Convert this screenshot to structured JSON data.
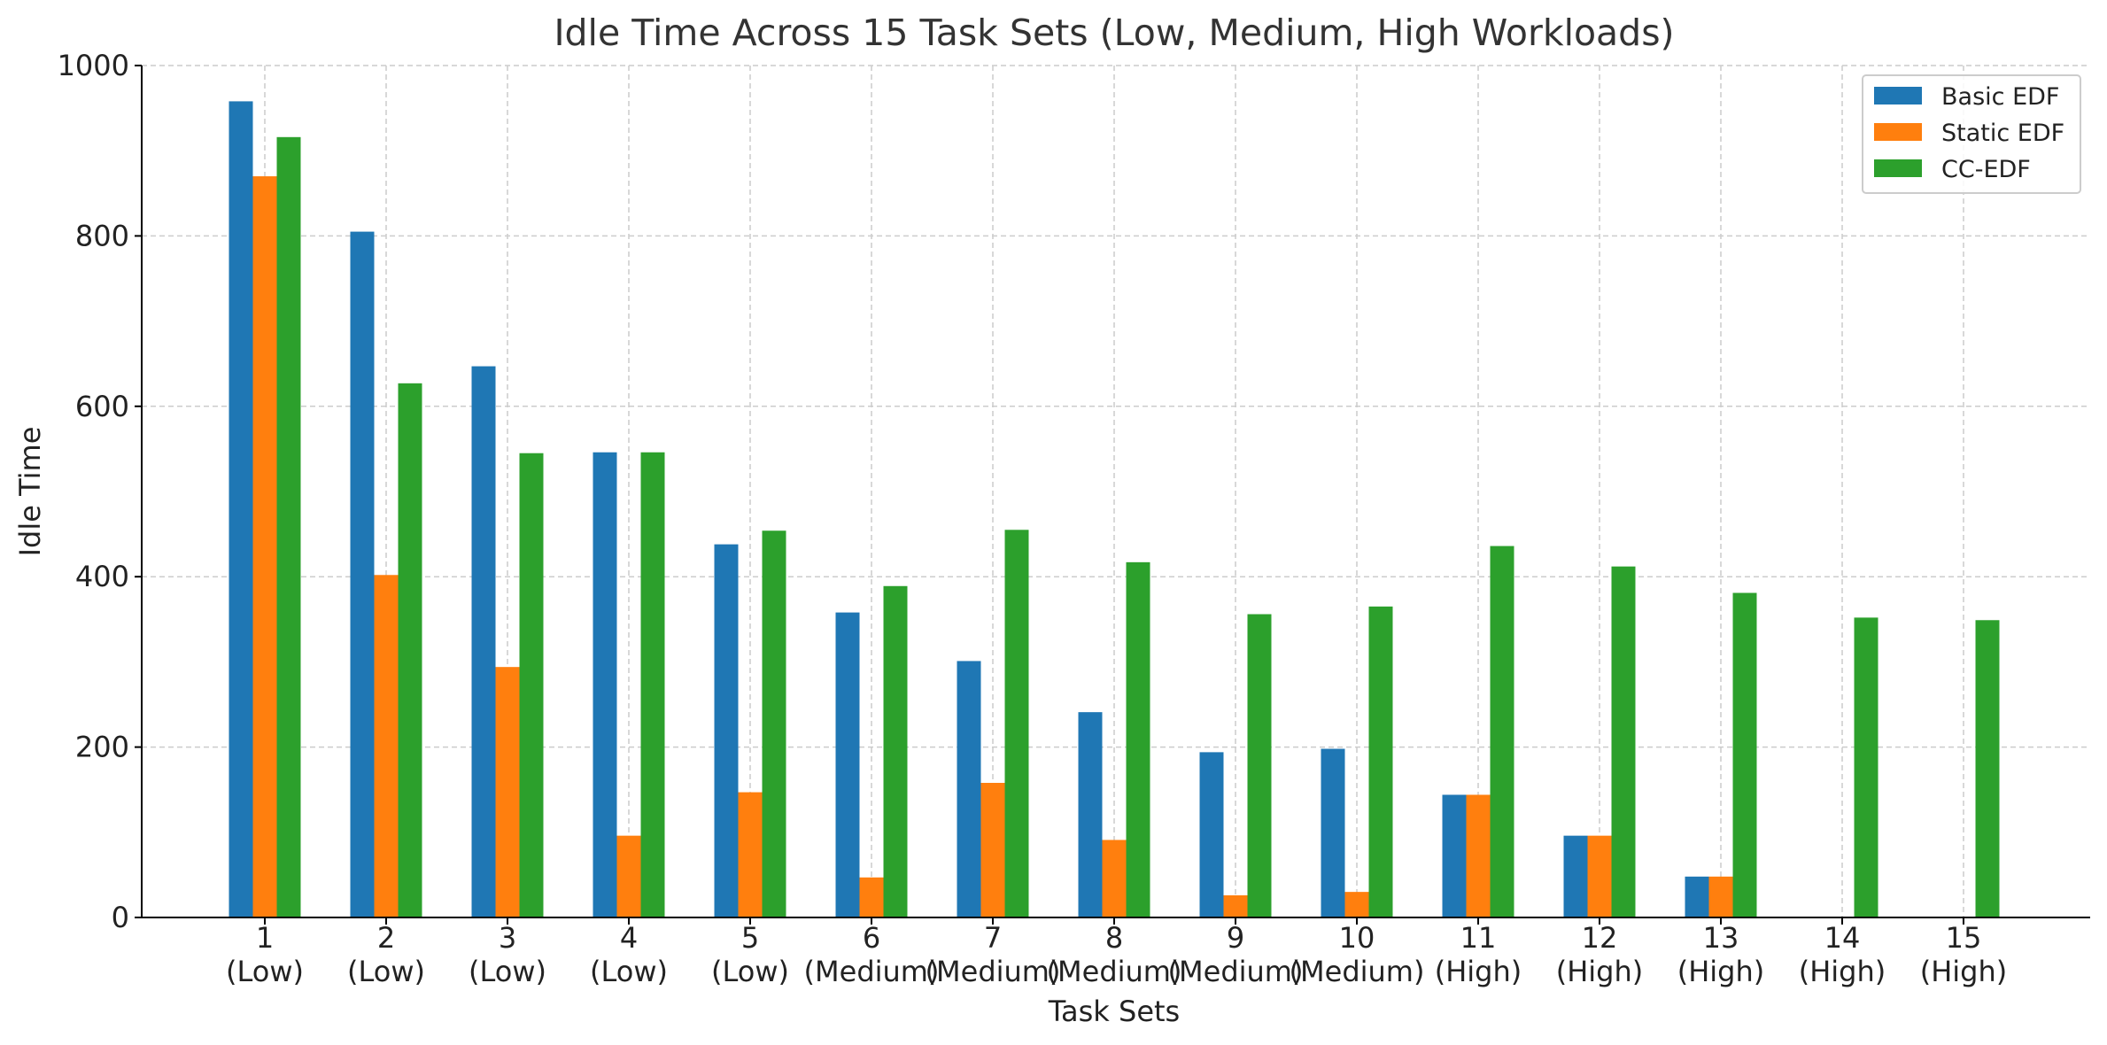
{
  "chart_data": {
    "type": "bar",
    "title": "Idle Time Across 15 Task Sets (Low, Medium, High Workloads)",
    "xlabel": "Task Sets",
    "ylabel": "Idle Time",
    "ylim": [
      0,
      1000
    ],
    "yticks": [
      "0",
      "200",
      "400",
      "600",
      "800",
      "1000"
    ],
    "categories": [
      [
        "1",
        "(Low)"
      ],
      [
        "2",
        "(Low)"
      ],
      [
        "3",
        "(Low)"
      ],
      [
        "4",
        "(Low)"
      ],
      [
        "5",
        "(Low)"
      ],
      [
        "6",
        "(Medium)"
      ],
      [
        "7",
        "(Medium)"
      ],
      [
        "8",
        "(Medium)"
      ],
      [
        "9",
        "(Medium)"
      ],
      [
        "10",
        "(Medium)"
      ],
      [
        "11",
        "(High)"
      ],
      [
        "12",
        "(High)"
      ],
      [
        "13",
        "(High)"
      ],
      [
        "14",
        "(High)"
      ],
      [
        "15",
        "(High)"
      ]
    ],
    "series": [
      {
        "name": "Basic EDF",
        "color": "#1f77b4",
        "values": [
          958,
          805,
          647,
          546,
          438,
          358,
          301,
          241,
          194,
          198,
          144,
          96,
          48,
          0,
          0
        ]
      },
      {
        "name": "Static EDF",
        "color": "#ff7f0e",
        "values": [
          870,
          402,
          294,
          96,
          147,
          47,
          158,
          91,
          26,
          30,
          144,
          96,
          48,
          0,
          0
        ]
      },
      {
        "name": "CC-EDF",
        "color": "#2ca02c",
        "values": [
          916,
          627,
          545,
          546,
          454,
          389,
          455,
          417,
          356,
          365,
          436,
          412,
          381,
          352,
          349
        ]
      }
    ],
    "grid": true,
    "legend": "top-right"
  }
}
